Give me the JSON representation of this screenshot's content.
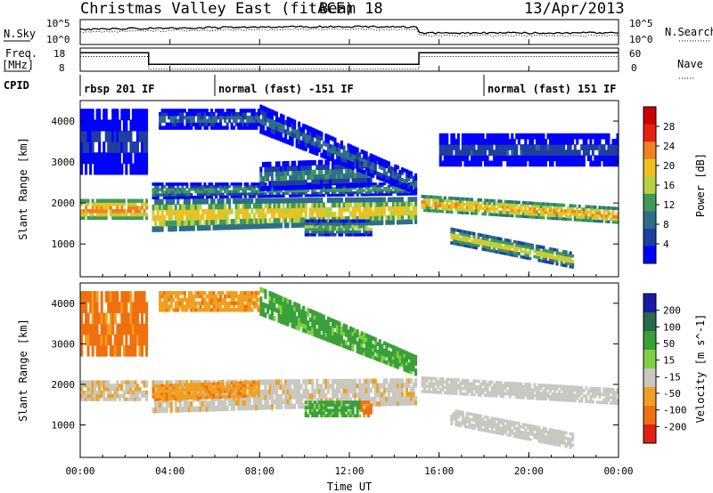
{
  "header": {
    "station": "Christmas Valley East (fitACF)",
    "beam": "Beam 18",
    "date": "13/Apr/2013"
  },
  "strips": {
    "nsky_label": "N.Sky",
    "nsky_ticks": [
      "10^5",
      "10^0"
    ],
    "nsearch_label": "N.Search",
    "freq_label_1": "Freq.",
    "freq_label_2": "[MHz]",
    "freq_ticks": [
      "18",
      "8"
    ],
    "nave_ticks": [
      "60",
      "0"
    ],
    "nave_label": "Nave",
    "cpid_label": "CPID",
    "cpid_segments": [
      {
        "label": "rbsp 201 IF",
        "start_h": 0,
        "end_h": 6
      },
      {
        "label": "normal (fast) -151 IF",
        "start_h": 6,
        "end_h": 18
      },
      {
        "label": "normal (fast) 151 IF",
        "start_h": 18,
        "end_h": 24
      }
    ],
    "freq_profile_mhz": [
      [
        0,
        16
      ],
      [
        3.05,
        16
      ],
      [
        3.05,
        11
      ],
      [
        15.1,
        11
      ],
      [
        15.1,
        16
      ],
      [
        24,
        16
      ]
    ],
    "nave_profile": [
      [
        0,
        38
      ],
      [
        3.05,
        38
      ],
      [
        3.05,
        5
      ],
      [
        15.1,
        5
      ],
      [
        15.1,
        38
      ],
      [
        24,
        38
      ]
    ]
  },
  "x_axis": {
    "label": "Time UT",
    "ticks": [
      "00:00",
      "04:00",
      "08:00",
      "12:00",
      "16:00",
      "20:00",
      "00:00"
    ],
    "range_hours": [
      0,
      24
    ]
  },
  "chart_data": [
    {
      "type": "heatmap",
      "name": "power",
      "ylabel": "Slant Range [km]",
      "yticks": [
        1000,
        2000,
        3000,
        4000
      ],
      "ylim": [
        200,
        4500
      ],
      "colorbar_label": "Power [dB]",
      "colorbar_ticks": [
        4,
        8,
        12,
        16,
        20,
        24,
        28
      ],
      "colorbar_range": [
        0,
        32
      ],
      "colors": [
        "#0000ff",
        "#1f3ea0",
        "#2e6e88",
        "#3f9a5a",
        "#b8d040",
        "#f0c020",
        "#f08020",
        "#e82010",
        "#cc0000"
      ],
      "features": [
        {
          "t": [
            0,
            3
          ],
          "r_start": [
            1600,
            2100
          ],
          "r_end": [
            1600,
            2100
          ],
          "level": 26
        },
        {
          "t": [
            3.2,
            15
          ],
          "r_start": [
            1300,
            2100
          ],
          "r_end": [
            1500,
            2150
          ],
          "level": 22
        },
        {
          "t": [
            3.2,
            15
          ],
          "r_start": [
            2100,
            2500
          ],
          "r_end": [
            2200,
            2500
          ],
          "level": 14
        },
        {
          "t": [
            8,
            13
          ],
          "r_start": [
            2300,
            3000
          ],
          "r_end": [
            2400,
            3100
          ],
          "level": 12
        },
        {
          "t": [
            8,
            15
          ],
          "r_start": [
            3700,
            4400
          ],
          "r_end": [
            2200,
            2700
          ],
          "level": 10
        },
        {
          "t": [
            3.5,
            8
          ],
          "r_start": [
            3800,
            4300
          ],
          "r_end": [
            3800,
            4300
          ],
          "level": 10
        },
        {
          "t": [
            10,
            13
          ],
          "r_start": [
            1200,
            1600
          ],
          "r_end": [
            1200,
            1600
          ],
          "level": 16
        },
        {
          "t": [
            15.2,
            24
          ],
          "r_start": [
            1800,
            2200
          ],
          "r_end": [
            1500,
            1900
          ],
          "level": 24
        },
        {
          "t": [
            16.5,
            22
          ],
          "r_start": [
            1000,
            1400
          ],
          "r_end": [
            400,
            800
          ],
          "level": 20
        },
        {
          "t": [
            0,
            3
          ],
          "r_start": [
            2700,
            4300
          ],
          "r_end": [
            2700,
            4300
          ],
          "level": 6
        },
        {
          "t": [
            16,
            24
          ],
          "r_start": [
            2900,
            3700
          ],
          "r_end": [
            2900,
            3700
          ],
          "level": 7
        }
      ]
    },
    {
      "type": "heatmap",
      "name": "velocity",
      "ylabel": "Slant Range [km]",
      "yticks": [
        1000,
        2000,
        3000,
        4000
      ],
      "ylim": [
        200,
        4500
      ],
      "colorbar_label": "Velocity [m s^-1]",
      "colorbar_ticks": [
        200,
        100,
        50,
        15,
        -15,
        -50,
        -100,
        -200
      ],
      "colors": [
        "#1a1aa8",
        "#2a6a4a",
        "#3aa03a",
        "#7ed040",
        "#c8c8c0",
        "#f0a020",
        "#f07010",
        "#e02010"
      ],
      "features": [
        {
          "t": [
            0,
            3
          ],
          "r_start": [
            1600,
            2100
          ],
          "r_end": [
            1600,
            2100
          ],
          "vel": -10
        },
        {
          "t": [
            3.2,
            15
          ],
          "r_start": [
            1300,
            2100
          ],
          "r_end": [
            1500,
            2150
          ],
          "vel": -5
        },
        {
          "t": [
            3.2,
            8
          ],
          "r_start": [
            1600,
            2000
          ],
          "r_end": [
            1700,
            2100
          ],
          "vel": -40
        },
        {
          "t": [
            8,
            15
          ],
          "r_start": [
            3700,
            4400
          ],
          "r_end": [
            2200,
            2700
          ],
          "vel": 60
        },
        {
          "t": [
            10,
            12.5
          ],
          "r_start": [
            1200,
            1600
          ],
          "r_end": [
            1200,
            1600
          ],
          "vel": 60
        },
        {
          "t": [
            12.5,
            13
          ],
          "r_start": [
            1200,
            1600
          ],
          "r_end": [
            1200,
            1600
          ],
          "vel": -60
        },
        {
          "t": [
            15.2,
            24
          ],
          "r_start": [
            1800,
            2200
          ],
          "r_end": [
            1500,
            1900
          ],
          "vel": 0
        },
        {
          "t": [
            16.5,
            22
          ],
          "r_start": [
            1000,
            1400
          ],
          "r_end": [
            400,
            800
          ],
          "vel": 0
        },
        {
          "t": [
            0,
            3
          ],
          "r_start": [
            2700,
            4300
          ],
          "r_end": [
            2700,
            4300
          ],
          "vel": -60
        },
        {
          "t": [
            3.5,
            8
          ],
          "r_start": [
            3800,
            4300
          ],
          "r_end": [
            3800,
            4300
          ],
          "vel": -40
        }
      ]
    }
  ]
}
